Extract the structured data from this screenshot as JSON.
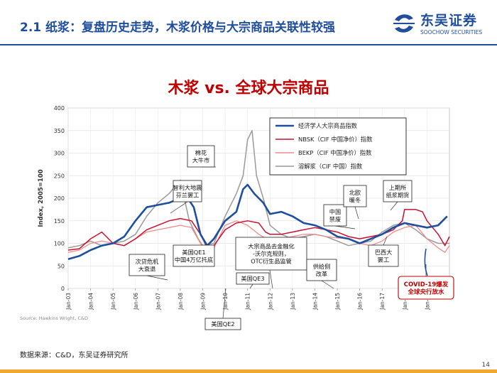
{
  "header": {
    "title": "2.1 纸浆：复盘历史走势，木浆价格与大宗商品关联性较强",
    "logo_cn": "东吴证券",
    "logo_en": "SOOCHOW SECURITIES",
    "logo_mark": "SCS"
  },
  "source_note": "Source: Hawkins Wright, C&D",
  "footer": {
    "data_source": "数据来源：C&D，东吴证券研究所",
    "page_number": "14"
  },
  "colors": {
    "brand": "#1f4e9c",
    "title_red": "#c00000",
    "footer_bar": "#f2a830"
  },
  "chart_data": {
    "type": "line",
    "title": "木浆 vs. 全球大宗商品",
    "ylabel": "Index, 2005=100",
    "xlabel": "",
    "ylim": [
      0,
      400
    ],
    "xlim": [
      2003.0,
      2020.0
    ],
    "yticks": [
      0,
      50,
      100,
      150,
      200,
      250,
      300,
      350,
      400
    ],
    "xticks": [
      "Jan-03",
      "Jan-04",
      "Jan-05",
      "Jan-06",
      "Jan-07",
      "Jan-08",
      "Jan-09",
      "Jan-10",
      "Jan-11",
      "Jan-12",
      "Jan-13",
      "Jan-14",
      "Jan-15",
      "Jan-16",
      "Jan-17",
      "Jan-18",
      "Jan-19"
    ],
    "grid": true,
    "legend_position": "top-right",
    "series": [
      {
        "name": "经济学人大宗商品指数",
        "color": "#1f4e9c",
        "x": [
          2003.0,
          2003.5,
          2004.0,
          2004.5,
          2005.0,
          2005.5,
          2006.0,
          2006.5,
          2007.0,
          2007.5,
          2008.0,
          2008.4,
          2008.6,
          2008.9,
          2009.2,
          2009.5,
          2010.0,
          2010.5,
          2010.8,
          2011.0,
          2011.3,
          2011.7,
          2012.0,
          2012.5,
          2013.0,
          2013.5,
          2014.0,
          2014.5,
          2015.0,
          2015.5,
          2016.0,
          2016.5,
          2017.0,
          2017.5,
          2018.0,
          2018.5,
          2019.0,
          2019.5,
          2019.9
        ],
        "y": [
          65,
          72,
          85,
          95,
          100,
          115,
          150,
          180,
          185,
          190,
          200,
          195,
          180,
          120,
          95,
          110,
          150,
          170,
          220,
          230,
          210,
          190,
          165,
          170,
          160,
          145,
          140,
          130,
          115,
          110,
          100,
          110,
          120,
          135,
          145,
          140,
          135,
          140,
          160
        ]
      },
      {
        "name": "NBSK（CIF 中国净价）指数",
        "color": "#c8102e",
        "x": [
          2003.0,
          2003.5,
          2004.0,
          2004.5,
          2005.0,
          2005.5,
          2006.0,
          2006.5,
          2007.0,
          2007.5,
          2008.0,
          2008.5,
          2008.9,
          2009.2,
          2009.5,
          2010.0,
          2010.5,
          2011.0,
          2011.5,
          2011.8,
          2012.0,
          2012.5,
          2013.0,
          2013.5,
          2014.0,
          2014.5,
          2015.0,
          2015.5,
          2016.0,
          2016.5,
          2017.0,
          2017.5,
          2017.9,
          2018.0,
          2018.5,
          2018.8,
          2019.0,
          2019.5,
          2019.8,
          2020.0
        ],
        "y": [
          85,
          88,
          110,
          125,
          100,
          95,
          110,
          130,
          140,
          150,
          155,
          150,
          120,
          90,
          95,
          130,
          145,
          150,
          145,
          125,
          120,
          120,
          125,
          130,
          135,
          130,
          125,
          115,
          110,
          115,
          120,
          130,
          150,
          175,
          175,
          170,
          150,
          120,
          95,
          115
        ]
      },
      {
        "name": "BEKP（CIF 中国净价）指数",
        "color": "#f08a8a",
        "x": [
          2003.0,
          2003.5,
          2004.0,
          2004.5,
          2005.0,
          2005.5,
          2006.0,
          2006.5,
          2007.0,
          2007.5,
          2008.0,
          2008.5,
          2008.9,
          2009.2,
          2009.5,
          2010.0,
          2010.5,
          2011.0,
          2011.5,
          2012.0,
          2012.5,
          2013.0,
          2013.5,
          2014.0,
          2014.5,
          2015.0,
          2015.5,
          2016.0,
          2016.5,
          2017.0,
          2017.5,
          2018.0,
          2018.5,
          2019.0,
          2019.5,
          2019.8,
          2020.0
        ],
        "y": [
          80,
          85,
          100,
          105,
          100,
          95,
          110,
          125,
          130,
          135,
          140,
          135,
          100,
          80,
          90,
          140,
          150,
          140,
          120,
          105,
          110,
          115,
          120,
          120,
          115,
          112,
          110,
          100,
          95,
          105,
          125,
          135,
          140,
          110,
          90,
          80,
          95
        ]
      },
      {
        "name": "溶解浆（CIF 中国）指数",
        "color": "#999999",
        "x": [
          2003.0,
          2003.5,
          2004.0,
          2004.5,
          2005.0,
          2005.5,
          2006.0,
          2006.5,
          2007.0,
          2007.5,
          2008.0,
          2008.4,
          2008.8,
          2009.0,
          2009.5,
          2010.0,
          2010.5,
          2010.8,
          2011.0,
          2011.2,
          2011.4,
          2011.7,
          2012.0,
          2012.5,
          2013.0,
          2013.5,
          2014.0,
          2014.5,
          2015.0,
          2015.5,
          2016.0,
          2016.5,
          2017.0,
          2017.5,
          2018.0,
          2018.5,
          2019.0,
          2019.5,
          2020.0
        ],
        "y": [
          90,
          95,
          105,
          95,
          100,
          105,
          120,
          160,
          190,
          210,
          240,
          150,
          110,
          95,
          100,
          160,
          210,
          250,
          330,
          350,
          250,
          200,
          140,
          120,
          110,
          115,
          120,
          115,
          105,
          95,
          100,
          105,
          125,
          140,
          145,
          130,
          110,
          100,
          100
        ]
      }
    ],
    "annotations": [
      {
        "label": "棉花\n大牛市"
      },
      {
        "label": "智利大地震\n芬兰罢工"
      },
      {
        "label": "次贷危机\n大衰退"
      },
      {
        "label": "美国QE1\n中国4万亿托底"
      },
      {
        "label": "美国QE2"
      },
      {
        "label": "大宗商品去金融化\n-沃尔克规则，\nOTC衍生品监管"
      },
      {
        "label": "美国QE3"
      },
      {
        "label": "供给侧\n改革"
      },
      {
        "label": "中国\n禁废"
      },
      {
        "label": "北欧\n暖冬"
      },
      {
        "label": "上期所\n纸浆期货"
      },
      {
        "label": "巴西大\n罢工"
      },
      {
        "label": "COVID-19爆发\n全球央行放水"
      }
    ]
  }
}
